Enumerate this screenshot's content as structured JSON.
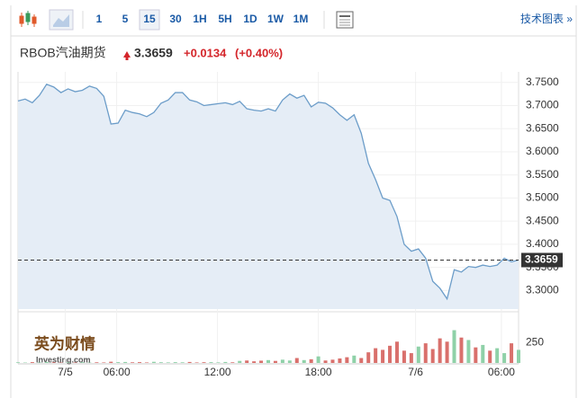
{
  "toolbar": {
    "intervals": [
      "1",
      "5",
      "15",
      "30",
      "1H",
      "5H",
      "1D",
      "1W",
      "1M"
    ],
    "active": 2,
    "link": "技术图表 »"
  },
  "header": {
    "title": "RBOB汽油期货",
    "change": "+0.0134",
    "change_pct": "(+0.40%)"
  },
  "logo": {
    "brand": "英为财情",
    "site": "Investing.com"
  },
  "chart_data": {
    "type": "area",
    "color": "#6c9dc9",
    "fill": "#e5edf6",
    "last": 3.3659,
    "grid": true,
    "xlim": [
      0,
      70
    ],
    "xticks": [
      {
        "value": 6.6,
        "label": "7/5"
      },
      {
        "value": 13.8,
        "label": "06:00"
      },
      {
        "value": 27.9,
        "label": "12:00"
      },
      {
        "value": 42,
        "label": "18:00"
      },
      {
        "value": 55.6,
        "label": "7/6"
      },
      {
        "value": 67.6,
        "label": "06:00"
      }
    ],
    "ylim": [
      3.26,
      3.765
    ],
    "yticks": [
      {
        "value": 3.3,
        "label": "3.3000"
      },
      {
        "value": 3.35,
        "label": "3.3500"
      },
      {
        "value": 3.4,
        "label": "3.4000"
      },
      {
        "value": 3.45,
        "label": "3.4500"
      },
      {
        "value": 3.5,
        "label": "3.5000"
      },
      {
        "value": 3.55,
        "label": "3.5500"
      },
      {
        "value": 3.6,
        "label": "3.6000"
      },
      {
        "value": 3.65,
        "label": "3.6500"
      },
      {
        "value": 3.7,
        "label": "3.7000"
      },
      {
        "value": 3.75,
        "label": "3.7500"
      }
    ],
    "values": [
      3.71,
      3.714,
      3.706,
      3.722,
      3.746,
      3.74,
      3.728,
      3.736,
      3.73,
      3.733,
      3.742,
      3.737,
      3.72,
      3.66,
      3.662,
      3.69,
      3.685,
      3.682,
      3.676,
      3.685,
      3.705,
      3.712,
      3.728,
      3.728,
      3.712,
      3.708,
      3.7,
      3.702,
      3.704,
      3.706,
      3.702,
      3.709,
      3.693,
      3.69,
      3.688,
      3.693,
      3.688,
      3.712,
      3.725,
      3.716,
      3.722,
      3.697,
      3.707,
      3.705,
      3.695,
      3.68,
      3.668,
      3.68,
      3.64,
      3.575,
      3.54,
      3.5,
      3.495,
      3.46,
      3.4,
      3.385,
      3.39,
      3.37,
      3.32,
      3.305,
      3.282,
      3.345,
      3.34,
      3.352,
      3.35,
      3.355,
      3.352,
      3.355,
      3.37,
      3.362,
      3.366
    ],
    "volume": {
      "ylim": [
        0,
        570
      ],
      "yticks": [
        250
      ],
      "up_color": "#8fd1a8",
      "down_color": "#d9706c",
      "values": [
        8,
        5,
        10,
        6,
        12,
        8,
        5,
        7,
        6,
        9,
        5,
        8,
        6,
        15,
        10,
        12,
        8,
        10,
        6,
        14,
        9,
        7,
        10,
        8,
        12,
        6,
        9,
        10,
        7,
        12,
        8,
        25,
        30,
        20,
        28,
        35,
        25,
        40,
        30,
        60,
        35,
        45,
        80,
        30,
        40,
        55,
        70,
        90,
        60,
        130,
        180,
        160,
        210,
        260,
        150,
        120,
        200,
        240,
        170,
        300,
        260,
        400,
        310,
        280,
        190,
        220,
        150,
        180,
        120,
        240,
        160
      ]
    }
  }
}
